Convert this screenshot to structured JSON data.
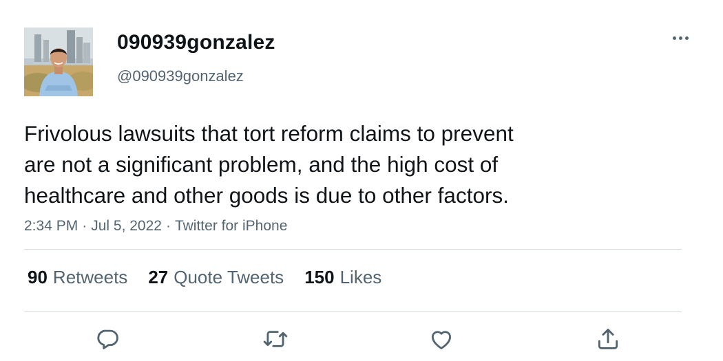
{
  "user": {
    "display_name": "090939gonzalez",
    "handle": "@090939gonzalez",
    "avatar": "profile-photo-man-city-skyline"
  },
  "tweet": {
    "text_lines": [
      "Frivolous lawsuits that tort reform claims to prevent",
      "are not a significant problem, and the high cost of",
      "healthcare and other goods is due to other factors."
    ],
    "time": "2:34 PM",
    "date": "Jul 5, 2022",
    "source": "Twitter for iPhone",
    "separator": "·"
  },
  "stats": {
    "retweets": {
      "count": "90",
      "label": "Retweets"
    },
    "quote_tweets": {
      "count": "27",
      "label": "Quote Tweets"
    },
    "likes": {
      "count": "150",
      "label": "Likes"
    }
  },
  "actions": {
    "reply": "reply-icon",
    "retweet": "retweet-icon",
    "like": "heart-icon",
    "share": "share-icon"
  },
  "more_menu": "more-icon",
  "colors": {
    "text_primary": "#0f1419",
    "text_secondary": "#536471",
    "divider": "#cfd9de"
  }
}
